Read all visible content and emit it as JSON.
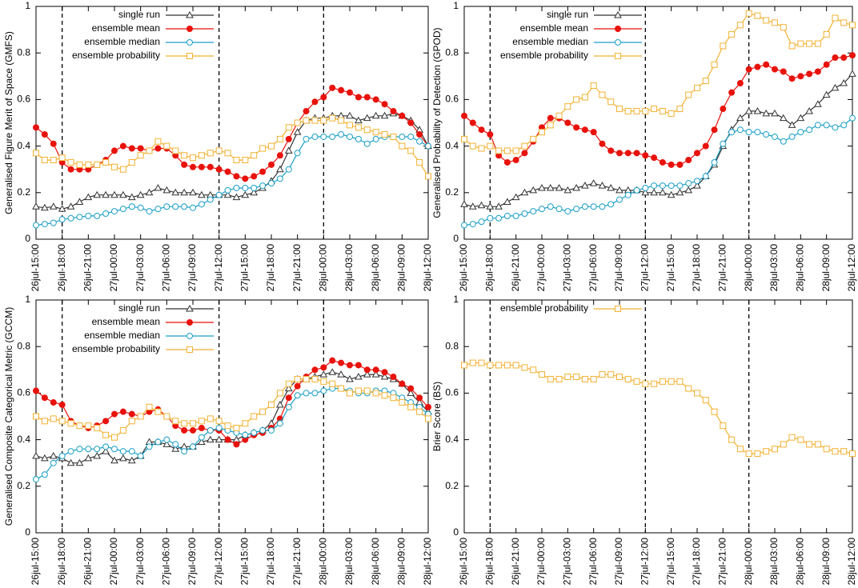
{
  "chart_data": [
    {
      "type": "line",
      "ylabel": "Generalised Figure Merit of Space (GMFS)",
      "categories": [
        "26jul-15:00",
        null,
        null,
        "26jul-18:00",
        null,
        null,
        "26jul-21:00",
        null,
        null,
        "27jul-00:00",
        null,
        null,
        "27jul-03:00",
        null,
        null,
        "27jul-06:00",
        null,
        null,
        "27jul-09:00",
        null,
        null,
        "27jul-12:00",
        null,
        null,
        "27jul-15:00",
        null,
        null,
        "27jul-18:00",
        null,
        null,
        "27jul-21:00",
        null,
        null,
        "28jul-00:00",
        null,
        null,
        "28jul-03:00",
        null,
        null,
        "28jul-06:00",
        null,
        null,
        "28jul-09:00",
        null,
        null,
        "28jul-12:00"
      ],
      "ylim": [
        0,
        1
      ],
      "yticks": [
        0,
        0.2,
        0.4,
        0.6,
        0.8,
        1
      ],
      "legend": "upper left",
      "vlines": [
        "26jul-18:00",
        "27jul-12:00",
        "28jul-00:00"
      ],
      "series": [
        {
          "name": "single run",
          "color": "#333333",
          "marker": "triangle",
          "values": [
            0.14,
            0.135,
            0.14,
            0.13,
            0.14,
            0.16,
            0.18,
            0.19,
            0.19,
            0.19,
            0.19,
            0.18,
            0.19,
            0.2,
            0.22,
            0.21,
            0.2,
            0.2,
            0.2,
            0.19,
            0.19,
            0.19,
            0.19,
            0.18,
            0.19,
            0.2,
            0.22,
            0.25,
            0.3,
            0.38,
            0.46,
            0.51,
            0.52,
            0.52,
            0.53,
            0.53,
            0.53,
            0.51,
            0.52,
            0.53,
            0.53,
            0.54,
            0.53,
            0.51,
            0.47,
            0.4
          ]
        },
        {
          "name": "ensemble mean",
          "color": "#e8120c",
          "marker": "circle-filled",
          "values": [
            0.48,
            0.45,
            0.41,
            0.33,
            0.3,
            0.3,
            0.3,
            0.32,
            0.34,
            0.38,
            0.4,
            0.39,
            0.39,
            0.38,
            0.39,
            0.39,
            0.36,
            0.32,
            0.31,
            0.31,
            0.31,
            0.3,
            0.29,
            0.27,
            0.26,
            0.27,
            0.29,
            0.32,
            0.36,
            0.43,
            0.5,
            0.55,
            0.59,
            0.61,
            0.65,
            0.64,
            0.63,
            0.61,
            0.61,
            0.6,
            0.58,
            0.55,
            0.53,
            0.5,
            0.45,
            0.4
          ]
        },
        {
          "name": "ensemble median",
          "color": "#1a9fc6",
          "marker": "circle",
          "values": [
            0.06,
            0.065,
            0.07,
            0.085,
            0.09,
            0.095,
            0.1,
            0.1,
            0.11,
            0.12,
            0.13,
            0.14,
            0.135,
            0.12,
            0.13,
            0.14,
            0.14,
            0.14,
            0.135,
            0.15,
            0.17,
            0.19,
            0.21,
            0.22,
            0.22,
            0.22,
            0.23,
            0.24,
            0.26,
            0.3,
            0.37,
            0.43,
            0.44,
            0.44,
            0.44,
            0.45,
            0.44,
            0.43,
            0.41,
            0.43,
            0.44,
            0.44,
            0.44,
            0.44,
            0.42,
            0.4
          ]
        },
        {
          "name": "ensemble probability",
          "color": "#f2b233",
          "marker": "square",
          "values": [
            0.37,
            0.34,
            0.34,
            0.35,
            0.33,
            0.32,
            0.32,
            0.32,
            0.33,
            0.31,
            0.3,
            0.33,
            0.36,
            0.38,
            0.42,
            0.4,
            0.38,
            0.36,
            0.35,
            0.36,
            0.37,
            0.38,
            0.37,
            0.34,
            0.34,
            0.36,
            0.39,
            0.4,
            0.43,
            0.48,
            0.5,
            0.51,
            0.51,
            0.51,
            0.52,
            0.51,
            0.49,
            0.48,
            0.47,
            0.46,
            0.45,
            0.44,
            0.4,
            0.38,
            0.33,
            0.27
          ]
        }
      ]
    },
    {
      "type": "line",
      "ylabel": "Generalised Probability of Detection (GPOD)",
      "categories": [
        "26jul-15:00",
        null,
        null,
        "26jul-18:00",
        null,
        null,
        "26jul-21:00",
        null,
        null,
        "27jul-00:00",
        null,
        null,
        "27jul-03:00",
        null,
        null,
        "27jul-06:00",
        null,
        null,
        "27jul-09:00",
        null,
        null,
        "27jul-12:00",
        null,
        null,
        "27jul-15:00",
        null,
        null,
        "27jul-18:00",
        null,
        null,
        "27jul-21:00",
        null,
        null,
        "28jul-00:00",
        null,
        null,
        "28jul-03:00",
        null,
        null,
        "28jul-06:00",
        null,
        null,
        "28jul-09:00",
        null,
        null,
        "28jul-12:00"
      ],
      "ylim": [
        0,
        1
      ],
      "yticks": [
        0,
        0.2,
        0.4,
        0.6,
        0.8,
        1
      ],
      "legend": "upper left",
      "vlines": [
        "26jul-18:00",
        "27jul-12:00",
        "28jul-00:00"
      ],
      "series": [
        {
          "name": "single run",
          "color": "#333333",
          "marker": "triangle",
          "values": [
            0.15,
            0.14,
            0.145,
            0.14,
            0.14,
            0.16,
            0.18,
            0.2,
            0.21,
            0.22,
            0.22,
            0.22,
            0.21,
            0.22,
            0.23,
            0.24,
            0.23,
            0.22,
            0.21,
            0.21,
            0.21,
            0.2,
            0.2,
            0.2,
            0.19,
            0.2,
            0.21,
            0.23,
            0.27,
            0.32,
            0.4,
            0.47,
            0.52,
            0.55,
            0.55,
            0.54,
            0.54,
            0.52,
            0.49,
            0.52,
            0.55,
            0.58,
            0.62,
            0.65,
            0.67,
            0.71
          ]
        },
        {
          "name": "ensemble mean",
          "color": "#e8120c",
          "marker": "circle-filled",
          "values": [
            0.53,
            0.5,
            0.47,
            0.45,
            0.36,
            0.33,
            0.34,
            0.37,
            0.42,
            0.48,
            0.52,
            0.52,
            0.5,
            0.48,
            0.47,
            0.46,
            0.41,
            0.38,
            0.37,
            0.37,
            0.37,
            0.36,
            0.35,
            0.33,
            0.32,
            0.32,
            0.34,
            0.37,
            0.4,
            0.47,
            0.56,
            0.63,
            0.67,
            0.73,
            0.74,
            0.75,
            0.73,
            0.72,
            0.69,
            0.7,
            0.71,
            0.72,
            0.75,
            0.78,
            0.78,
            0.79
          ]
        },
        {
          "name": "ensemble median",
          "color": "#1a9fc6",
          "marker": "circle",
          "values": [
            0.06,
            0.065,
            0.075,
            0.09,
            0.09,
            0.1,
            0.1,
            0.11,
            0.12,
            0.13,
            0.14,
            0.13,
            0.12,
            0.13,
            0.14,
            0.14,
            0.14,
            0.15,
            0.17,
            0.19,
            0.21,
            0.22,
            0.23,
            0.23,
            0.23,
            0.23,
            0.24,
            0.25,
            0.27,
            0.33,
            0.41,
            0.46,
            0.47,
            0.46,
            0.46,
            0.45,
            0.44,
            0.42,
            0.44,
            0.46,
            0.47,
            0.49,
            0.49,
            0.48,
            0.49,
            0.52
          ]
        },
        {
          "name": "ensemble probability",
          "color": "#f2b233",
          "marker": "square",
          "values": [
            0.43,
            0.4,
            0.39,
            0.4,
            0.38,
            0.38,
            0.38,
            0.4,
            0.43,
            0.46,
            0.49,
            0.53,
            0.57,
            0.6,
            0.61,
            0.66,
            0.62,
            0.59,
            0.56,
            0.55,
            0.55,
            0.55,
            0.56,
            0.55,
            0.54,
            0.56,
            0.62,
            0.65,
            0.68,
            0.75,
            0.83,
            0.88,
            0.92,
            0.97,
            0.96,
            0.94,
            0.93,
            0.91,
            0.83,
            0.84,
            0.84,
            0.84,
            0.88,
            0.95,
            0.93,
            0.92
          ]
        }
      ]
    },
    {
      "type": "line",
      "ylabel": "Generalised Composite Categorical Metric (GCCM)",
      "categories": [
        "26jul-15:00",
        null,
        null,
        "26jul-18:00",
        null,
        null,
        "26jul-21:00",
        null,
        null,
        "27jul-00:00",
        null,
        null,
        "27jul-03:00",
        null,
        null,
        "27jul-06:00",
        null,
        null,
        "27jul-09:00",
        null,
        null,
        "27jul-12:00",
        null,
        null,
        "27jul-15:00",
        null,
        null,
        "27jul-18:00",
        null,
        null,
        "27jul-21:00",
        null,
        null,
        "28jul-00:00",
        null,
        null,
        "28jul-03:00",
        null,
        null,
        "28jul-06:00",
        null,
        null,
        "28jul-09:00",
        null,
        null,
        "28jul-12:00"
      ],
      "ylim": [
        0,
        1
      ],
      "yticks": [
        0,
        0.2,
        0.4,
        0.6,
        0.8,
        1
      ],
      "legend": "upper left",
      "vlines": [
        "26jul-18:00",
        "27jul-12:00",
        "28jul-00:00"
      ],
      "series": [
        {
          "name": "single run",
          "color": "#333333",
          "marker": "triangle",
          "values": [
            0.33,
            0.32,
            0.33,
            0.32,
            0.3,
            0.3,
            0.32,
            0.33,
            0.35,
            0.31,
            0.32,
            0.31,
            0.33,
            0.39,
            0.39,
            0.38,
            0.36,
            0.37,
            0.37,
            0.39,
            0.4,
            0.4,
            0.4,
            0.4,
            0.42,
            0.43,
            0.44,
            0.47,
            0.55,
            0.62,
            0.66,
            0.66,
            0.67,
            0.68,
            0.69,
            0.68,
            0.66,
            0.67,
            0.68,
            0.68,
            0.67,
            0.66,
            0.64,
            0.6,
            0.56,
            0.52
          ]
        },
        {
          "name": "ensemble mean",
          "color": "#e8120c",
          "marker": "circle-filled",
          "values": [
            0.61,
            0.58,
            0.56,
            0.55,
            0.48,
            0.46,
            0.45,
            0.46,
            0.48,
            0.51,
            0.52,
            0.51,
            0.5,
            0.52,
            0.53,
            0.5,
            0.46,
            0.44,
            0.44,
            0.45,
            0.44,
            0.44,
            0.4,
            0.38,
            0.4,
            0.42,
            0.43,
            0.45,
            0.49,
            0.58,
            0.63,
            0.67,
            0.7,
            0.71,
            0.74,
            0.73,
            0.72,
            0.72,
            0.7,
            0.7,
            0.69,
            0.67,
            0.64,
            0.62,
            0.58,
            0.54
          ]
        },
        {
          "name": "ensemble median",
          "color": "#1a9fc6",
          "marker": "circle",
          "values": [
            0.23,
            0.25,
            0.3,
            0.33,
            0.35,
            0.36,
            0.36,
            0.36,
            0.37,
            0.36,
            0.35,
            0.35,
            0.33,
            0.37,
            0.39,
            0.4,
            0.38,
            0.35,
            0.37,
            0.41,
            0.44,
            0.45,
            0.44,
            0.43,
            0.42,
            0.43,
            0.44,
            0.44,
            0.47,
            0.54,
            0.59,
            0.6,
            0.6,
            0.61,
            0.62,
            0.62,
            0.61,
            0.6,
            0.6,
            0.61,
            0.61,
            0.6,
            0.58,
            0.56,
            0.54,
            0.51
          ]
        },
        {
          "name": "ensemble probability",
          "color": "#f2b233",
          "marker": "square",
          "values": [
            0.5,
            0.48,
            0.49,
            0.48,
            0.47,
            0.46,
            0.46,
            0.45,
            0.42,
            0.41,
            0.44,
            0.48,
            0.5,
            0.54,
            0.52,
            0.5,
            0.48,
            0.47,
            0.47,
            0.48,
            0.49,
            0.48,
            0.46,
            0.45,
            0.47,
            0.5,
            0.52,
            0.55,
            0.6,
            0.64,
            0.66,
            0.66,
            0.66,
            0.65,
            0.64,
            0.62,
            0.6,
            0.61,
            0.61,
            0.6,
            0.59,
            0.58,
            0.56,
            0.54,
            0.52,
            0.49
          ]
        }
      ]
    },
    {
      "type": "line",
      "ylabel": "Brier Score (BS)",
      "categories": [
        "26jul-15:00",
        null,
        null,
        "26jul-18:00",
        null,
        null,
        "26jul-21:00",
        null,
        null,
        "27jul-00:00",
        null,
        null,
        "27jul-03:00",
        null,
        null,
        "27jul-06:00",
        null,
        null,
        "27jul-09:00",
        null,
        null,
        "27jul-12:00",
        null,
        null,
        "27jul-15:00",
        null,
        null,
        "27jul-18:00",
        null,
        null,
        "27jul-21:00",
        null,
        null,
        "28jul-00:00",
        null,
        null,
        "28jul-03:00",
        null,
        null,
        "28jul-06:00",
        null,
        null,
        "28jul-09:00",
        null,
        null,
        "28jul-12:00"
      ],
      "ylim": [
        0,
        1
      ],
      "yticks": [
        0,
        0.2,
        0.4,
        0.6,
        0.8,
        1
      ],
      "legend": "upper left",
      "vlines": [
        "26jul-18:00",
        "27jul-12:00",
        "28jul-00:00"
      ],
      "series": [
        {
          "name": "ensemble probability",
          "color": "#f2b233",
          "marker": "square",
          "values": [
            0.72,
            0.73,
            0.73,
            0.72,
            0.72,
            0.72,
            0.72,
            0.71,
            0.7,
            0.68,
            0.66,
            0.66,
            0.67,
            0.67,
            0.66,
            0.66,
            0.68,
            0.68,
            0.67,
            0.66,
            0.65,
            0.64,
            0.64,
            0.65,
            0.65,
            0.65,
            0.62,
            0.6,
            0.57,
            0.52,
            0.46,
            0.4,
            0.36,
            0.34,
            0.34,
            0.35,
            0.36,
            0.38,
            0.41,
            0.4,
            0.38,
            0.38,
            0.36,
            0.35,
            0.35,
            0.34
          ]
        }
      ]
    }
  ]
}
